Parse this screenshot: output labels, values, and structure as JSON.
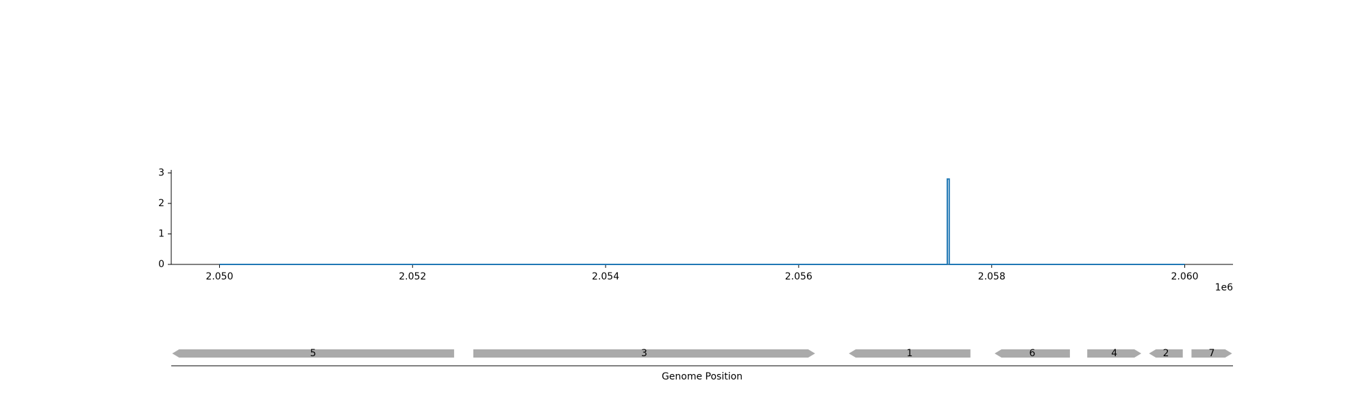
{
  "chart_data": [
    {
      "type": "line",
      "title": "",
      "xlabel": "",
      "ylabel": "",
      "x_offset_label": "1e6",
      "xlim": [
        2.0495,
        2.0605
      ],
      "ylim": [
        0,
        3.1
      ],
      "x_ticks": [
        2.05,
        2.052,
        2.054,
        2.056,
        2.058,
        2.06
      ],
      "x_tick_labels": [
        "2.050",
        "2.052",
        "2.054",
        "2.056",
        "2.058",
        "2.060"
      ],
      "y_ticks": [
        0,
        1,
        2,
        3
      ],
      "y_tick_labels": [
        "0",
        "1",
        "2",
        "3"
      ],
      "grid": false,
      "color": "#1f77b4",
      "x": [
        2.05,
        2.05754,
        2.05754,
        2.05756,
        2.05756,
        2.06
      ],
      "y": [
        0,
        0,
        2.8,
        2.8,
        0,
        0
      ]
    },
    {
      "type": "gene_track",
      "xlabel": "Genome Position",
      "xlim": [
        2.0495,
        2.0605
      ],
      "color": "#aaaaaa",
      "genes": [
        {
          "label": "5",
          "start": 2.04951,
          "end": 2.05243,
          "strand": "-"
        },
        {
          "label": "3",
          "start": 2.05263,
          "end": 2.05617,
          "strand": "+"
        },
        {
          "label": "1",
          "start": 2.05652,
          "end": 2.05778,
          "strand": "-"
        },
        {
          "label": "6",
          "start": 2.05803,
          "end": 2.05881,
          "strand": "-"
        },
        {
          "label": "4",
          "start": 2.05899,
          "end": 2.05955,
          "strand": "+"
        },
        {
          "label": "2",
          "start": 2.05963,
          "end": 2.05998,
          "strand": "-"
        },
        {
          "label": "7",
          "start": 2.06007,
          "end": 2.06049,
          "strand": "+"
        }
      ]
    }
  ]
}
